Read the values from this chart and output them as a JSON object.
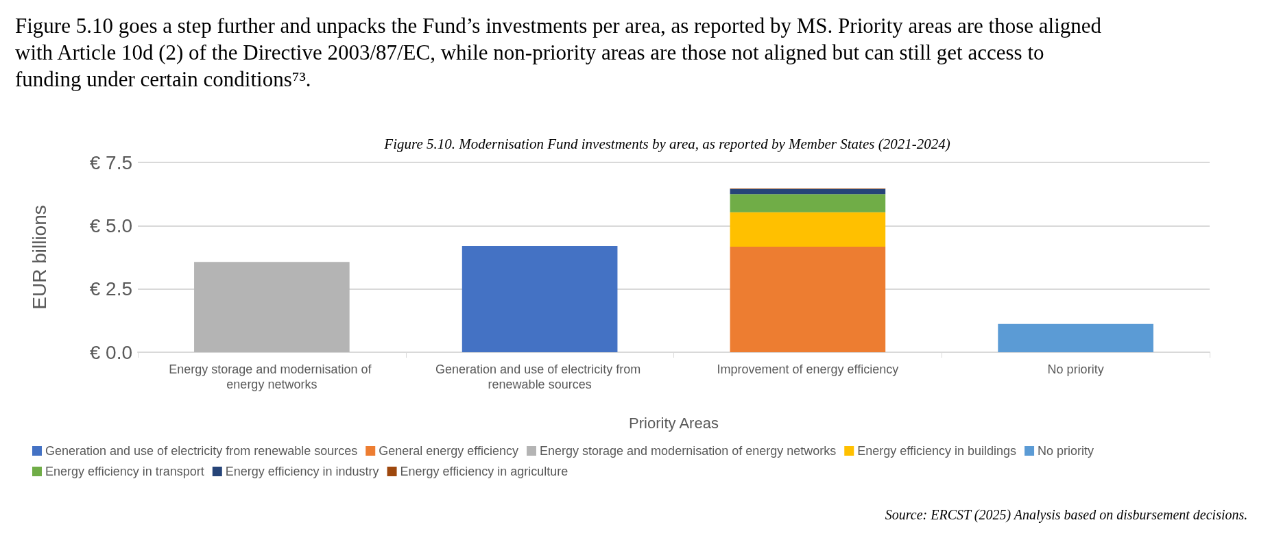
{
  "chart_data": {
    "type": "bar",
    "stacked": true,
    "title": "Figure 5.10. Modernisation Fund investments by area, as reported by Member States (2021-2024)",
    "xlabel": "Priority Areas",
    "ylabel": "EUR billions",
    "categories": [
      "Energy storage and modernisation of energy networks",
      "Generation and use of electricity from renewable sources",
      "Improvement of energy efficiency",
      "No priority"
    ],
    "series": [
      {
        "name": "Generation and use of electricity from renewable sources",
        "color": "#4472c4",
        "values": [
          null,
          4.2,
          null,
          null
        ]
      },
      {
        "name": "General energy efficiency",
        "color": "#ed7d31",
        "values": [
          null,
          null,
          4.17,
          null
        ]
      },
      {
        "name": "Energy storage and modernisation of energy networks",
        "color": "#b4b4b4",
        "values": [
          3.57,
          null,
          null,
          null
        ]
      },
      {
        "name": "Energy efficiency in buildings",
        "color": "#ffc000",
        "values": [
          null,
          null,
          1.36,
          null
        ]
      },
      {
        "name": "No priority",
        "color": "#5b9bd5",
        "values": [
          null,
          null,
          null,
          1.12
        ]
      },
      {
        "name": "Energy efficiency in transport",
        "color": "#70ad47",
        "values": [
          null,
          null,
          0.72,
          null
        ]
      },
      {
        "name": "Energy efficiency in industry",
        "color": "#264478",
        "values": [
          null,
          null,
          0.2,
          null
        ]
      },
      {
        "name": "Energy efficiency in agriculture",
        "color": "#9e480e",
        "values": [
          null,
          null,
          0.02,
          null
        ]
      }
    ],
    "ylim": [
      0,
      7.5
    ],
    "yticks": [
      {
        "value": 0,
        "label": "€ 0.0"
      },
      {
        "value": 2.5,
        "label": "€ 2.5"
      },
      {
        "value": 5,
        "label": "€ 5.0"
      },
      {
        "value": 7.5,
        "label": "€ 7.5"
      }
    ],
    "grid": "y",
    "legend": "bottom",
    "annotations": [
      "Figure 5.10 goes a step further and unpacks the Fund’s investments per area, as reported by MS. Priority areas are those aligned with Article 10d (2) of the Directive 2003/87/EC, while non-priority areas are those not aligned but can still get access to funding under certain conditions⁷³.",
      "Source: ERCST (2025) Analysis based on disbursement decisions."
    ]
  }
}
